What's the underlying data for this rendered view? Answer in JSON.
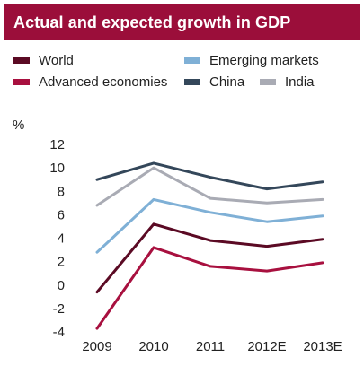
{
  "header": {
    "title": "Actual and expected growth in GDP"
  },
  "legend": {
    "items": [
      {
        "label": "World",
        "color": "#5b0a24"
      },
      {
        "label": "Emerging markets",
        "color": "#7fb0d6"
      },
      {
        "label": "Advanced economies",
        "color": "#a8103f"
      },
      {
        "label": "China",
        "color": "#34475a"
      },
      {
        "label": "India",
        "color": "#a9abb4"
      }
    ]
  },
  "chart_data": {
    "type": "line",
    "title": "Actual and expected growth in GDP",
    "ylabel": "%",
    "xlabel": "",
    "categories": [
      "2009",
      "2010",
      "2011",
      "2012E",
      "2013E"
    ],
    "ylim": [
      -4,
      12
    ],
    "yticks": [
      "12",
      "10",
      "8",
      "6",
      "4",
      "2",
      "0",
      "-2",
      "-4"
    ],
    "grid": false,
    "legend_position": "top",
    "series": [
      {
        "name": "World",
        "color": "#5b0a24",
        "values": [
          -0.6,
          5.2,
          3.8,
          3.3,
          3.9
        ]
      },
      {
        "name": "Emerging markets",
        "color": "#7fb0d6",
        "values": [
          2.8,
          7.3,
          6.2,
          5.4,
          5.9
        ]
      },
      {
        "name": "Advanced economies",
        "color": "#a8103f",
        "values": [
          -3.7,
          3.2,
          1.6,
          1.2,
          1.9
        ]
      },
      {
        "name": "China",
        "color": "#34475a",
        "values": [
          9.0,
          10.4,
          9.2,
          8.2,
          8.8
        ]
      },
      {
        "name": "India",
        "color": "#a9abb4",
        "values": [
          6.8,
          10.0,
          7.4,
          7.0,
          7.3
        ]
      }
    ]
  }
}
